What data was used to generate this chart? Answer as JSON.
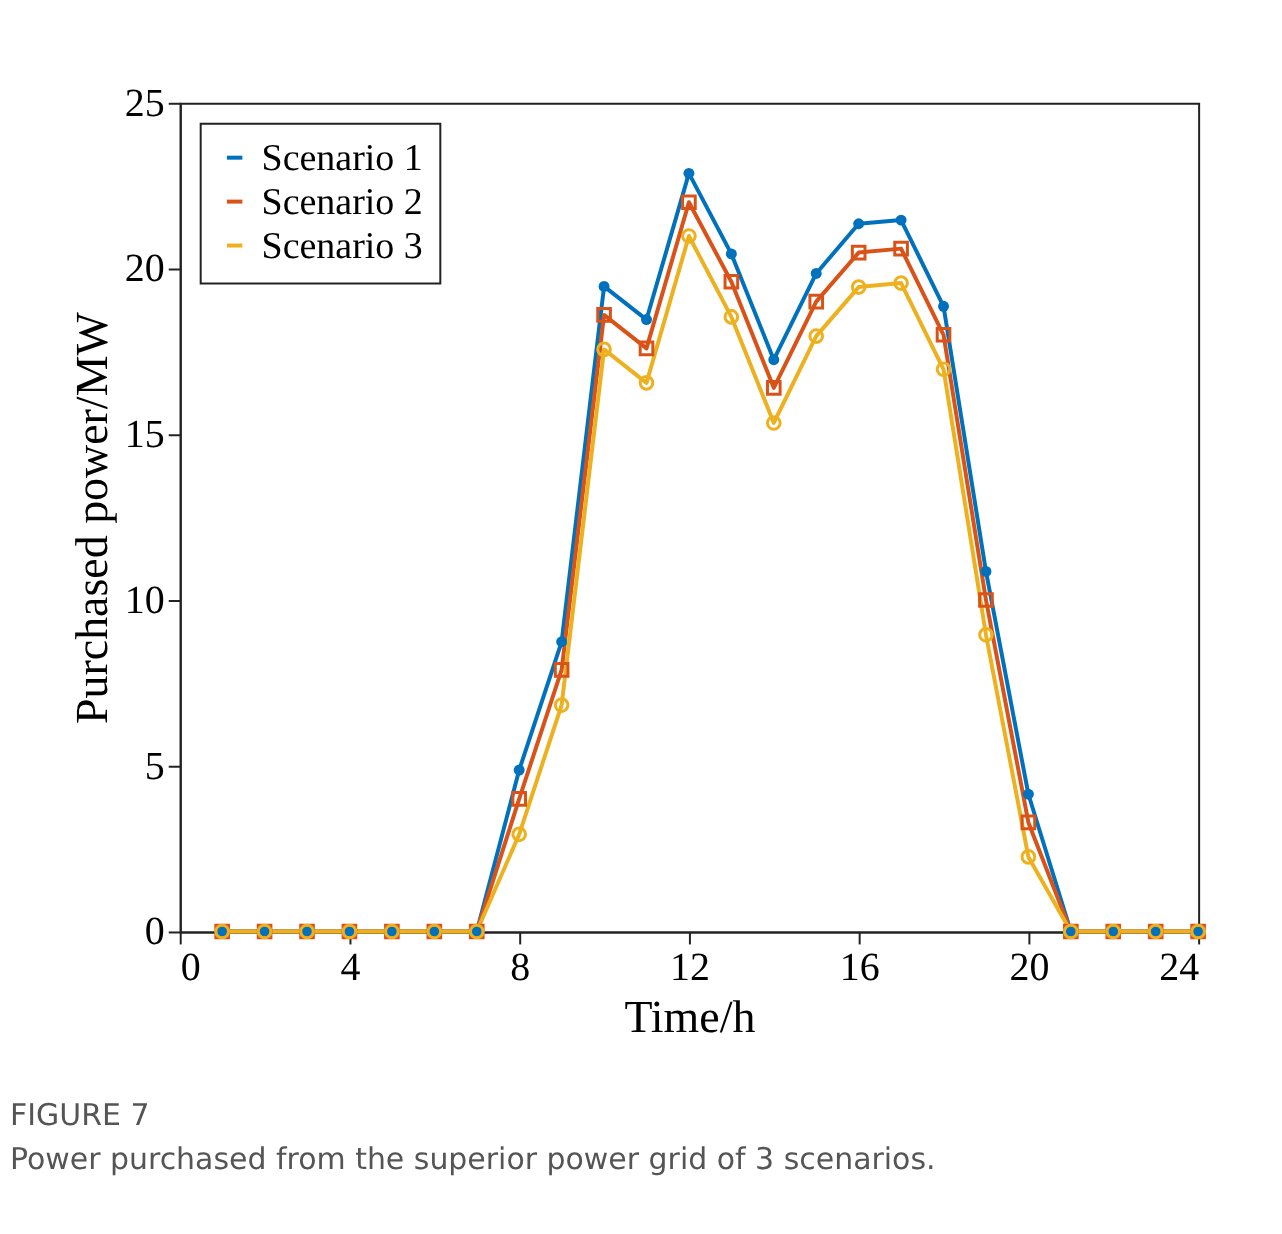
{
  "chart_data": {
    "type": "line",
    "xlabel": "Time/h",
    "ylabel": "Purchased power/MW",
    "x": [
      1,
      2,
      3,
      4,
      5,
      6,
      7,
      8,
      9,
      10,
      11,
      12,
      13,
      14,
      15,
      16,
      17,
      18,
      19,
      20,
      21,
      22,
      23,
      24
    ],
    "series": [
      {
        "name": "Scenario 1",
        "color": "#0072bd",
        "marker": "circle",
        "values": [
          0,
          0,
          0,
          0,
          0,
          0,
          0,
          4.87,
          8.74,
          19.46,
          18.46,
          22.87,
          20.44,
          17.25,
          19.85,
          21.35,
          21.46,
          18.86,
          10.86,
          4.14,
          0,
          0,
          0,
          0
        ]
      },
      {
        "name": "Scenario 2",
        "color": "#d95319",
        "marker": "square",
        "values": [
          0,
          0,
          0,
          0,
          0,
          0,
          0,
          4.0,
          7.89,
          18.6,
          17.59,
          22.0,
          19.6,
          16.4,
          19.0,
          20.48,
          20.6,
          18.0,
          10.0,
          3.29,
          0,
          0,
          0,
          0
        ]
      },
      {
        "name": "Scenario 3",
        "color": "#edb120",
        "marker": "circle",
        "values": [
          0,
          0,
          0,
          0,
          0,
          0,
          0,
          2.93,
          6.83,
          17.56,
          16.55,
          20.98,
          18.54,
          15.34,
          17.96,
          19.44,
          19.56,
          16.96,
          8.95,
          2.25,
          0,
          0,
          0,
          0
        ]
      }
    ],
    "xlim": [
      0,
      24
    ],
    "xticks": [
      0,
      4,
      8,
      12,
      16,
      20,
      24
    ],
    "ylim": [
      0,
      25
    ],
    "yticks": [
      0,
      5,
      10,
      15,
      20,
      25
    ],
    "grid": false,
    "legend": "top left",
    "line_style": "solid",
    "annotations": [
      "FIGURE 7",
      "Power purchased from the superior power grid of 3 scenarios."
    ]
  }
}
